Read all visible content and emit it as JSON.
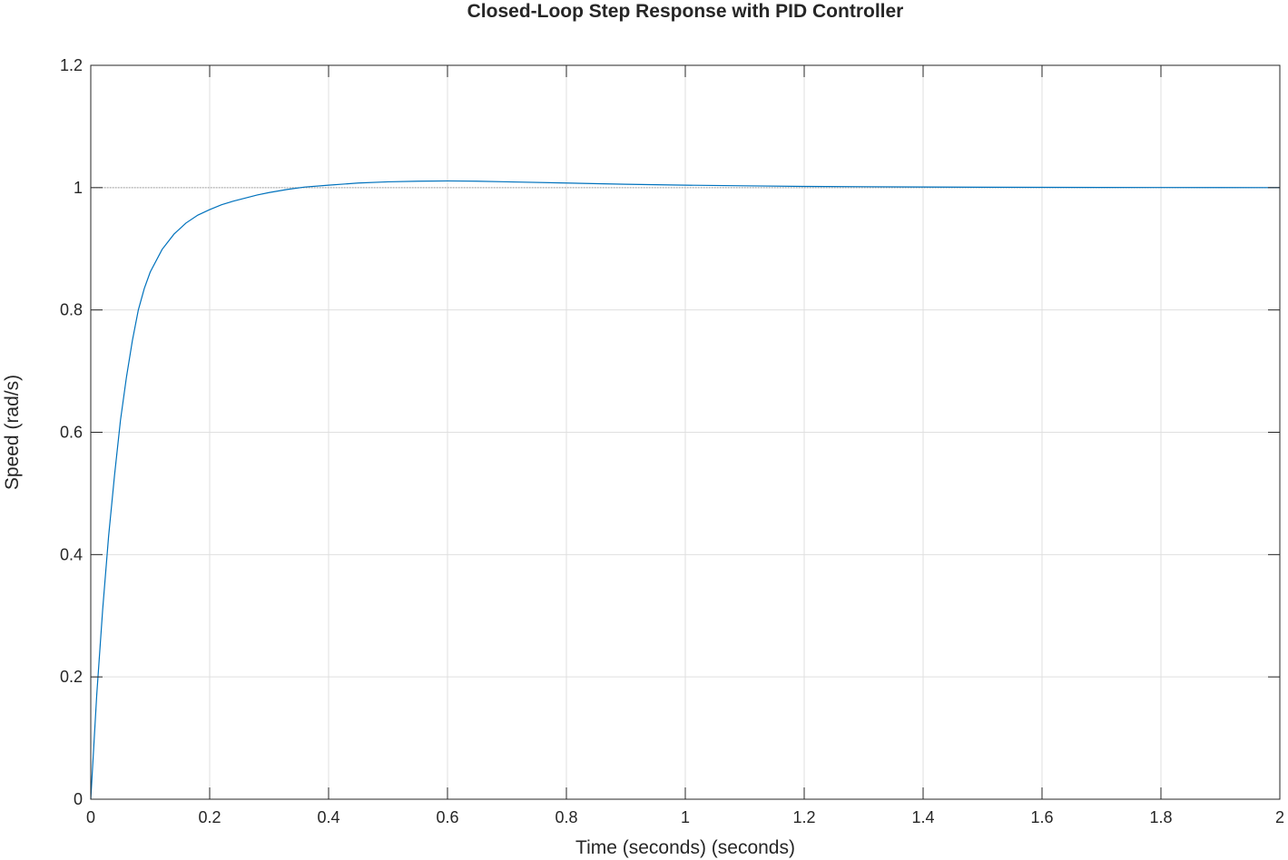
{
  "chart_data": {
    "type": "line",
    "title": "Closed-Loop Step Response with PID Controller",
    "xlabel": "Time (seconds) (seconds)",
    "ylabel": "Speed (rad/s)",
    "xlim": [
      0,
      2
    ],
    "ylim": [
      0,
      1.2
    ],
    "xticks": [
      0,
      0.2,
      0.4,
      0.6,
      0.8,
      1,
      1.2,
      1.4,
      1.6,
      1.8,
      2
    ],
    "xtick_labels": [
      "0",
      "0.2",
      "0.4",
      "0.6",
      "0.8",
      "1",
      "1.2",
      "1.4",
      "1.6",
      "1.8",
      "2"
    ],
    "yticks": [
      0,
      0.2,
      0.4,
      0.6,
      0.8,
      1,
      1.2
    ],
    "ytick_labels": [
      "0",
      "0.2",
      "0.4",
      "0.6",
      "0.8",
      "1",
      "1.2"
    ],
    "grid": true,
    "reference_line": {
      "y": 1,
      "style": "dotted",
      "color": "#a0a0a0"
    },
    "series": [
      {
        "color": "#0072bd",
        "x": [
          0,
          0.01,
          0.02,
          0.03,
          0.04,
          0.05,
          0.06,
          0.07,
          0.08,
          0.09,
          0.1,
          0.12,
          0.14,
          0.16,
          0.18,
          0.2,
          0.22,
          0.24,
          0.26,
          0.28,
          0.3,
          0.33,
          0.36,
          0.4,
          0.45,
          0.5,
          0.55,
          0.6,
          0.65,
          0.7,
          0.8,
          0.9,
          1.0,
          1.1,
          1.2,
          1.3,
          1.4,
          1.5,
          1.6,
          1.7,
          1.8,
          1.9,
          2.0
        ],
        "y": [
          0,
          0.17,
          0.31,
          0.43,
          0.53,
          0.62,
          0.69,
          0.75,
          0.8,
          0.835,
          0.862,
          0.899,
          0.924,
          0.942,
          0.955,
          0.964,
          0.972,
          0.978,
          0.983,
          0.988,
          0.992,
          0.997,
          1.001,
          1.004,
          1.0075,
          1.0095,
          1.0105,
          1.011,
          1.0105,
          1.0095,
          1.0075,
          1.0055,
          1.004,
          1.003,
          1.002,
          1.0015,
          1.001,
          1.0007,
          1.0005,
          1.0003,
          1.0002,
          1.0001,
          1.0
        ]
      }
    ]
  }
}
